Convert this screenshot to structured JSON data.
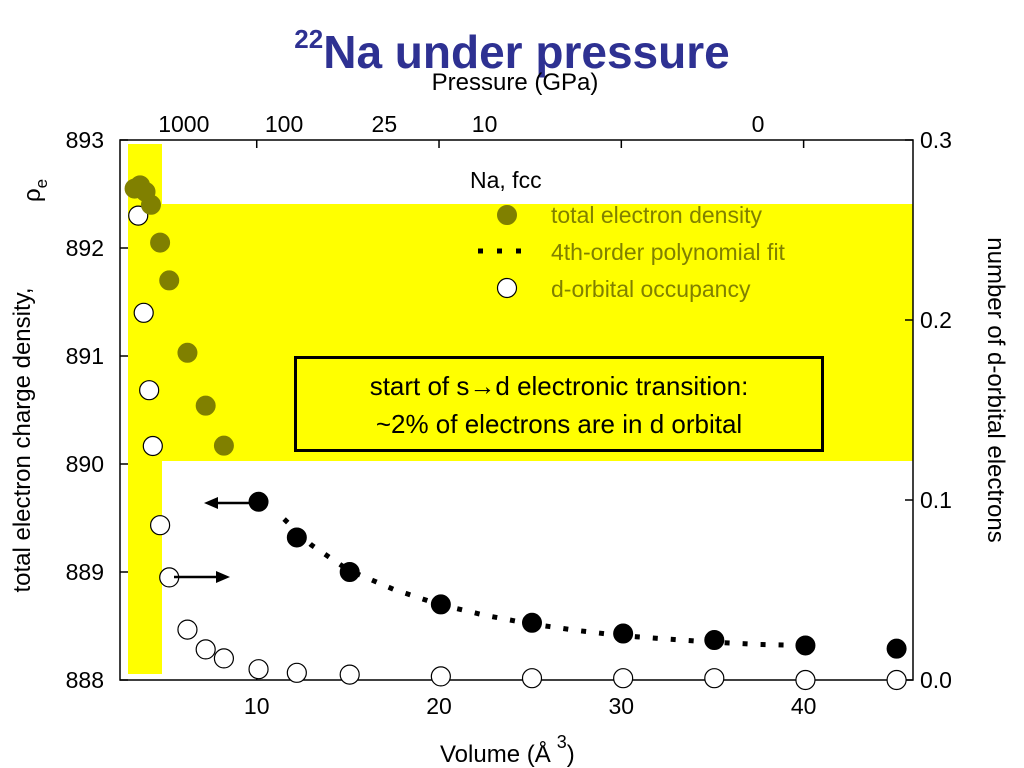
{
  "title": {
    "superscript": "22",
    "main": "Na under pressure"
  },
  "chart_data": {
    "type": "scatter",
    "x_axis": {
      "label_prefix": "Volume (Å",
      "label_exponent": "3",
      "label_suffix": ")",
      "range": [
        2.5,
        46
      ],
      "ticks": [
        10,
        20,
        30,
        40
      ]
    },
    "y_left": {
      "label": "total electron charge density,",
      "symbol": "ρ",
      "symbol_subscript": "e",
      "range": [
        888,
        893
      ],
      "ticks": [
        888,
        889,
        890,
        891,
        892,
        893
      ]
    },
    "y_right": {
      "label": "number of d-orbital electrons",
      "range": [
        0.0,
        0.3
      ],
      "ticks": [
        "0.0",
        "0.1",
        "0.2",
        "0.3"
      ]
    },
    "x_top": {
      "label": "Pressure (GPa)",
      "ticks": [
        {
          "label": "1000",
          "volume": 6.0
        },
        {
          "label": "100",
          "volume": 11.5
        },
        {
          "label": "25",
          "volume": 17.0
        },
        {
          "label": "10",
          "volume": 22.5
        },
        {
          "label": "0",
          "volume": 37.5
        }
      ],
      "tick_marks_at_volume": [
        10,
        20,
        30,
        40
      ]
    },
    "legend": {
      "title": "Na, fcc",
      "position": "top-right",
      "entries": [
        "total electron density",
        "4th-order polynomial fit",
        "d-orbital occupancy"
      ]
    },
    "series": [
      {
        "name": "total electron density",
        "marker": "filled-circle",
        "points": [
          [
            3.3,
            892.55
          ],
          [
            3.6,
            892.58
          ],
          [
            3.9,
            892.52
          ],
          [
            4.2,
            892.4
          ],
          [
            4.7,
            892.05
          ],
          [
            5.2,
            891.7
          ],
          [
            6.2,
            891.03
          ],
          [
            7.2,
            890.54
          ],
          [
            8.2,
            890.17
          ],
          [
            10.1,
            889.65
          ],
          [
            12.2,
            889.32
          ],
          [
            15.1,
            889.0
          ],
          [
            20.1,
            888.7
          ],
          [
            25.1,
            888.53
          ],
          [
            30.1,
            888.43
          ],
          [
            35.1,
            888.37
          ],
          [
            40.1,
            888.32
          ],
          [
            45.1,
            888.29
          ]
        ]
      },
      {
        "name": "4th-order polynomial fit",
        "marker": "dotted-line",
        "points": [
          [
            11.5,
            889.49
          ],
          [
            13,
            889.25
          ],
          [
            15,
            889.02
          ],
          [
            17.5,
            888.84
          ],
          [
            20,
            888.7
          ],
          [
            22.5,
            888.6
          ],
          [
            25,
            888.52
          ],
          [
            27.5,
            888.46
          ],
          [
            30,
            888.41
          ],
          [
            32.5,
            888.38
          ],
          [
            35,
            888.35
          ],
          [
            37.5,
            888.33
          ],
          [
            40,
            888.32
          ]
        ]
      },
      {
        "name": "d-orbital occupancy",
        "marker": "open-circle",
        "axis": "right",
        "points": [
          [
            3.5,
            0.258
          ],
          [
            3.8,
            0.204
          ],
          [
            4.1,
            0.161
          ],
          [
            4.3,
            0.13
          ],
          [
            4.7,
            0.086
          ],
          [
            5.2,
            0.057
          ],
          [
            6.2,
            0.028
          ],
          [
            7.2,
            0.017
          ],
          [
            8.2,
            0.012
          ],
          [
            10.1,
            0.006
          ],
          [
            12.2,
            0.004
          ],
          [
            15.1,
            0.003
          ],
          [
            20.1,
            0.002
          ],
          [
            25.1,
            0.001
          ],
          [
            30.1,
            0.001
          ],
          [
            35.1,
            0.001
          ],
          [
            40.1,
            0.0
          ],
          [
            45.1,
            0.0
          ]
        ]
      }
    ],
    "colors": {
      "highlight": "#ffff00",
      "filled_points_in_band": "#808000",
      "filled_points": "#000000",
      "legend_text": "#808000",
      "title": "#2e3192"
    }
  },
  "callout": {
    "line1_prefix": "start of s",
    "arrow_glyph": "→",
    "line1_suffix": "d electronic transition:",
    "line2": "~2% of electrons are in d orbital"
  }
}
